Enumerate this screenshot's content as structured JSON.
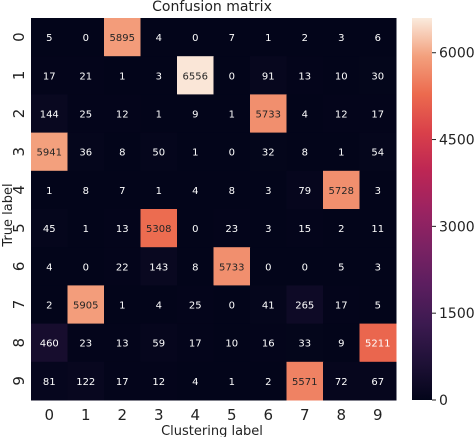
{
  "chart_data": {
    "type": "heatmap",
    "title": "Confusion matrix",
    "xlabel": "Clustering label",
    "ylabel": "True label",
    "x_categories": [
      "0",
      "1",
      "2",
      "3",
      "4",
      "5",
      "6",
      "7",
      "8",
      "9"
    ],
    "y_categories": [
      "0",
      "1",
      "2",
      "3",
      "4",
      "5",
      "6",
      "7",
      "8",
      "9"
    ],
    "values": [
      [
        5,
        0,
        5895,
        4,
        0,
        7,
        1,
        2,
        3,
        6
      ],
      [
        17,
        21,
        1,
        3,
        6556,
        0,
        91,
        13,
        10,
        30
      ],
      [
        144,
        25,
        12,
        1,
        9,
        1,
        5733,
        4,
        12,
        17
      ],
      [
        5941,
        36,
        8,
        50,
        1,
        0,
        32,
        8,
        1,
        54
      ],
      [
        1,
        8,
        7,
        1,
        4,
        8,
        3,
        79,
        5728,
        3
      ],
      [
        45,
        1,
        13,
        5308,
        0,
        23,
        3,
        15,
        2,
        11
      ],
      [
        4,
        0,
        22,
        143,
        8,
        5733,
        0,
        0,
        5,
        3
      ],
      [
        2,
        5905,
        1,
        4,
        25,
        0,
        41,
        265,
        17,
        5
      ],
      [
        460,
        23,
        13,
        59,
        17,
        10,
        16,
        33,
        9,
        5211
      ],
      [
        81,
        122,
        17,
        12,
        4,
        1,
        2,
        5571,
        72,
        67
      ]
    ],
    "colorbar": {
      "min": 0,
      "max": 6556,
      "ticks": [
        0,
        1500,
        3000,
        4500,
        6000
      ],
      "tick_labels": [
        "0",
        "1500",
        "3000",
        "4500",
        "6000"
      ]
    },
    "colormap": "rocket"
  }
}
